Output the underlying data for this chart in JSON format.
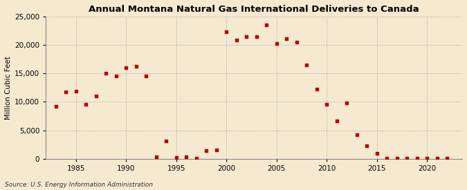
{
  "title": "Annual Montana Natural Gas International Deliveries to Canada",
  "ylabel": "Million Cubic Feet",
  "source": "Source: U.S. Energy Information Administration",
  "background_color": "#f5ead0",
  "marker_color": "#bb0000",
  "years": [
    1983,
    1984,
    1985,
    1986,
    1987,
    1988,
    1989,
    1990,
    1991,
    1992,
    1993,
    1994,
    1995,
    1996,
    1997,
    1998,
    1999,
    2000,
    2001,
    2002,
    2003,
    2004,
    2005,
    2006,
    2007,
    2008,
    2009,
    2010,
    2011,
    2012,
    2013,
    2014,
    2015,
    2016,
    2017,
    2018,
    2019,
    2020,
    2021,
    2022
  ],
  "values": [
    9200,
    11800,
    11900,
    9600,
    11000,
    15000,
    14500,
    16000,
    16200,
    14500,
    300,
    3100,
    200,
    300,
    100,
    1400,
    1600,
    22300,
    20900,
    21500,
    21500,
    23500,
    20200,
    21100,
    20500,
    16500,
    12200,
    9600,
    6700,
    9800,
    4200,
    2300,
    900,
    100,
    100,
    100,
    100,
    100,
    100,
    100
  ],
  "ylim": [
    0,
    25000
  ],
  "yticks": [
    0,
    5000,
    10000,
    15000,
    20000,
    25000
  ],
  "xlim": [
    1982,
    2023.5
  ],
  "xticks": [
    1985,
    1990,
    1995,
    2000,
    2005,
    2010,
    2015,
    2020
  ]
}
